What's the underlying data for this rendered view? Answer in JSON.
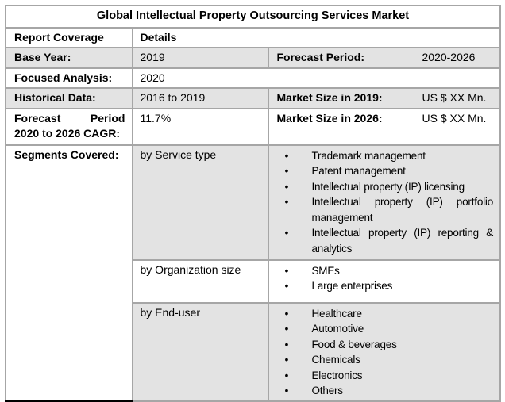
{
  "title": "Global Intellectual Property Outsourcing Services Market",
  "header": {
    "report_coverage": "Report Coverage",
    "details": "Details"
  },
  "rows": {
    "base_year": {
      "label": "Base Year:",
      "value": "2019"
    },
    "forecast_period": {
      "label": "Forecast Period:",
      "value": "2020-2026"
    },
    "focused_analysis": {
      "label": "Focused Analysis:",
      "value": "2020"
    },
    "historical_data": {
      "label": "Historical Data:",
      "value": "2016 to 2019"
    },
    "market_size_2019": {
      "label": "Market Size in 2019:",
      "value": "US $ XX Mn."
    },
    "cagr": {
      "label": "Forecast Period 2020 to 2026 CAGR:",
      "value": "11.7%"
    },
    "market_size_2026": {
      "label": "Market Size in 2026:",
      "value": "US $ XX Mn."
    }
  },
  "segments": {
    "label": "Segments Covered:",
    "groups": [
      {
        "name": "by Service type",
        "items": [
          "Trademark management",
          "Patent management",
          "Intellectual property (IP) licensing",
          "Intellectual property (IP) portfolio management",
          "Intellectual property (IP) reporting & analytics"
        ]
      },
      {
        "name": "by Organization size",
        "items": [
          "SMEs",
          "Large enterprises"
        ]
      },
      {
        "name": "by End-user",
        "items": [
          "Healthcare",
          "Automotive",
          "Food & beverages",
          "Chemicals",
          "Electronics",
          "Others"
        ]
      }
    ]
  },
  "colors": {
    "row_shade": "#E3E3E3",
    "border_gray": "#A6A6A6",
    "label_bottom_border": "#000000",
    "text": "#000000",
    "background": "#FFFFFF"
  }
}
